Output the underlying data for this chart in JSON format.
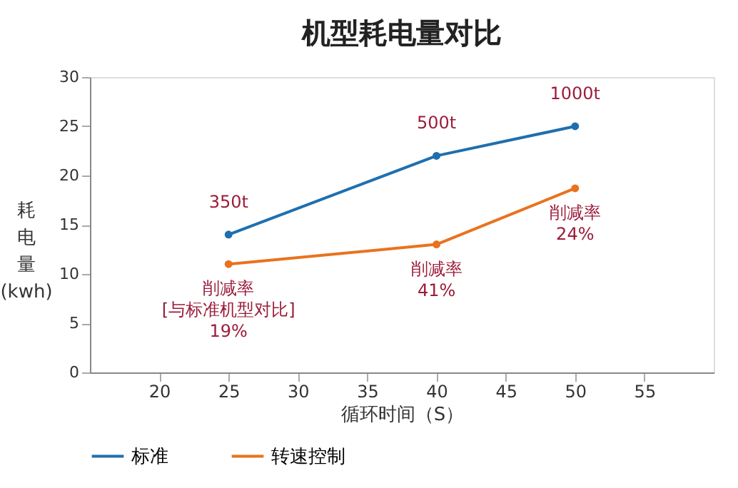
{
  "chart_data": {
    "type": "line",
    "title": "机型耗电量对比",
    "xlabel": "循环时间（S）",
    "ylabel": "耗电量\n(kwh)",
    "x": [
      25,
      40,
      50
    ],
    "series": [
      {
        "name": "标准",
        "color": "#1f6fae",
        "values": [
          14,
          22,
          25
        ]
      },
      {
        "name": "转速控制",
        "color": "#e8731e",
        "values": [
          11,
          13,
          18.7
        ]
      }
    ],
    "xlim": [
      15,
      60
    ],
    "xticks": [
      20,
      25,
      30,
      35,
      40,
      45,
      50,
      55
    ],
    "ylim": [
      0,
      30
    ],
    "yticks": [
      0,
      5,
      10,
      15,
      20,
      25,
      30
    ],
    "grid": false,
    "legend": "bottom",
    "marker": "circle",
    "line_style": "solid",
    "annotations": [
      {
        "text": "350t",
        "x": 25,
        "y": 14
      },
      {
        "text": "500t",
        "x": 40,
        "y": 22
      },
      {
        "text": "1000t",
        "x": 50,
        "y": 25
      },
      {
        "text": "削减率\n[与标准机型对比]\n19%",
        "x": 25,
        "y": 11
      },
      {
        "text": "削减率\n41%",
        "x": 40,
        "y": 13
      },
      {
        "text": "削减率\n24%",
        "x": 50,
        "y": 18.7
      }
    ]
  }
}
